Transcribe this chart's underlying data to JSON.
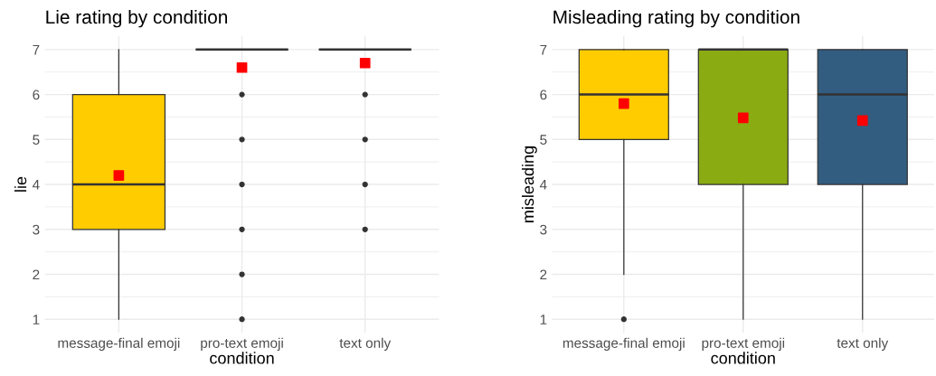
{
  "chart_data": [
    {
      "type": "box",
      "title": "Lie rating by condition",
      "xlabel": "condition",
      "ylabel": "lie",
      "categories": [
        "message-final emoji",
        "pro-text emoji",
        "text only"
      ],
      "colors": [
        "#ffcc00",
        null,
        null
      ],
      "boxes": [
        {
          "low": 1,
          "q1": 3,
          "median": 4,
          "q3": 6,
          "high": 7,
          "mean": 4.2
        },
        {
          "low": 7,
          "q1": 7,
          "median": 7,
          "q3": 7,
          "high": 7,
          "mean": 6.6,
          "outliers": [
            1,
            2,
            3,
            4,
            5,
            6
          ]
        },
        {
          "low": 7,
          "q1": 7,
          "median": 7,
          "q3": 7,
          "high": 7,
          "mean": 6.7,
          "outliers": [
            3,
            4,
            5,
            6
          ]
        }
      ],
      "ylim": [
        0.7,
        7.3
      ],
      "yticks": [
        1,
        2,
        3,
        4,
        5,
        6,
        7
      ],
      "grid": true
    },
    {
      "type": "box",
      "title": "Misleading rating by condition",
      "xlabel": "condition",
      "ylabel": "misleading",
      "categories": [
        "message-final emoji",
        "pro-text emoji",
        "text only"
      ],
      "colors": [
        "#ffcc00",
        "#8aab12",
        "#325d80"
      ],
      "boxes": [
        {
          "low": 2,
          "q1": 5,
          "median": 6,
          "q3": 7,
          "high": 7,
          "mean": 5.8,
          "outliers": [
            1
          ]
        },
        {
          "low": 1,
          "q1": 4,
          "median": 7,
          "q3": 7,
          "high": 7,
          "mean": 5.48
        },
        {
          "low": 1,
          "q1": 4,
          "median": 6,
          "q3": 7,
          "high": 7,
          "mean": 5.42
        }
      ],
      "ylim": [
        0.7,
        7.3
      ],
      "yticks": [
        1,
        2,
        3,
        4,
        5,
        6,
        7
      ],
      "grid": true
    }
  ]
}
